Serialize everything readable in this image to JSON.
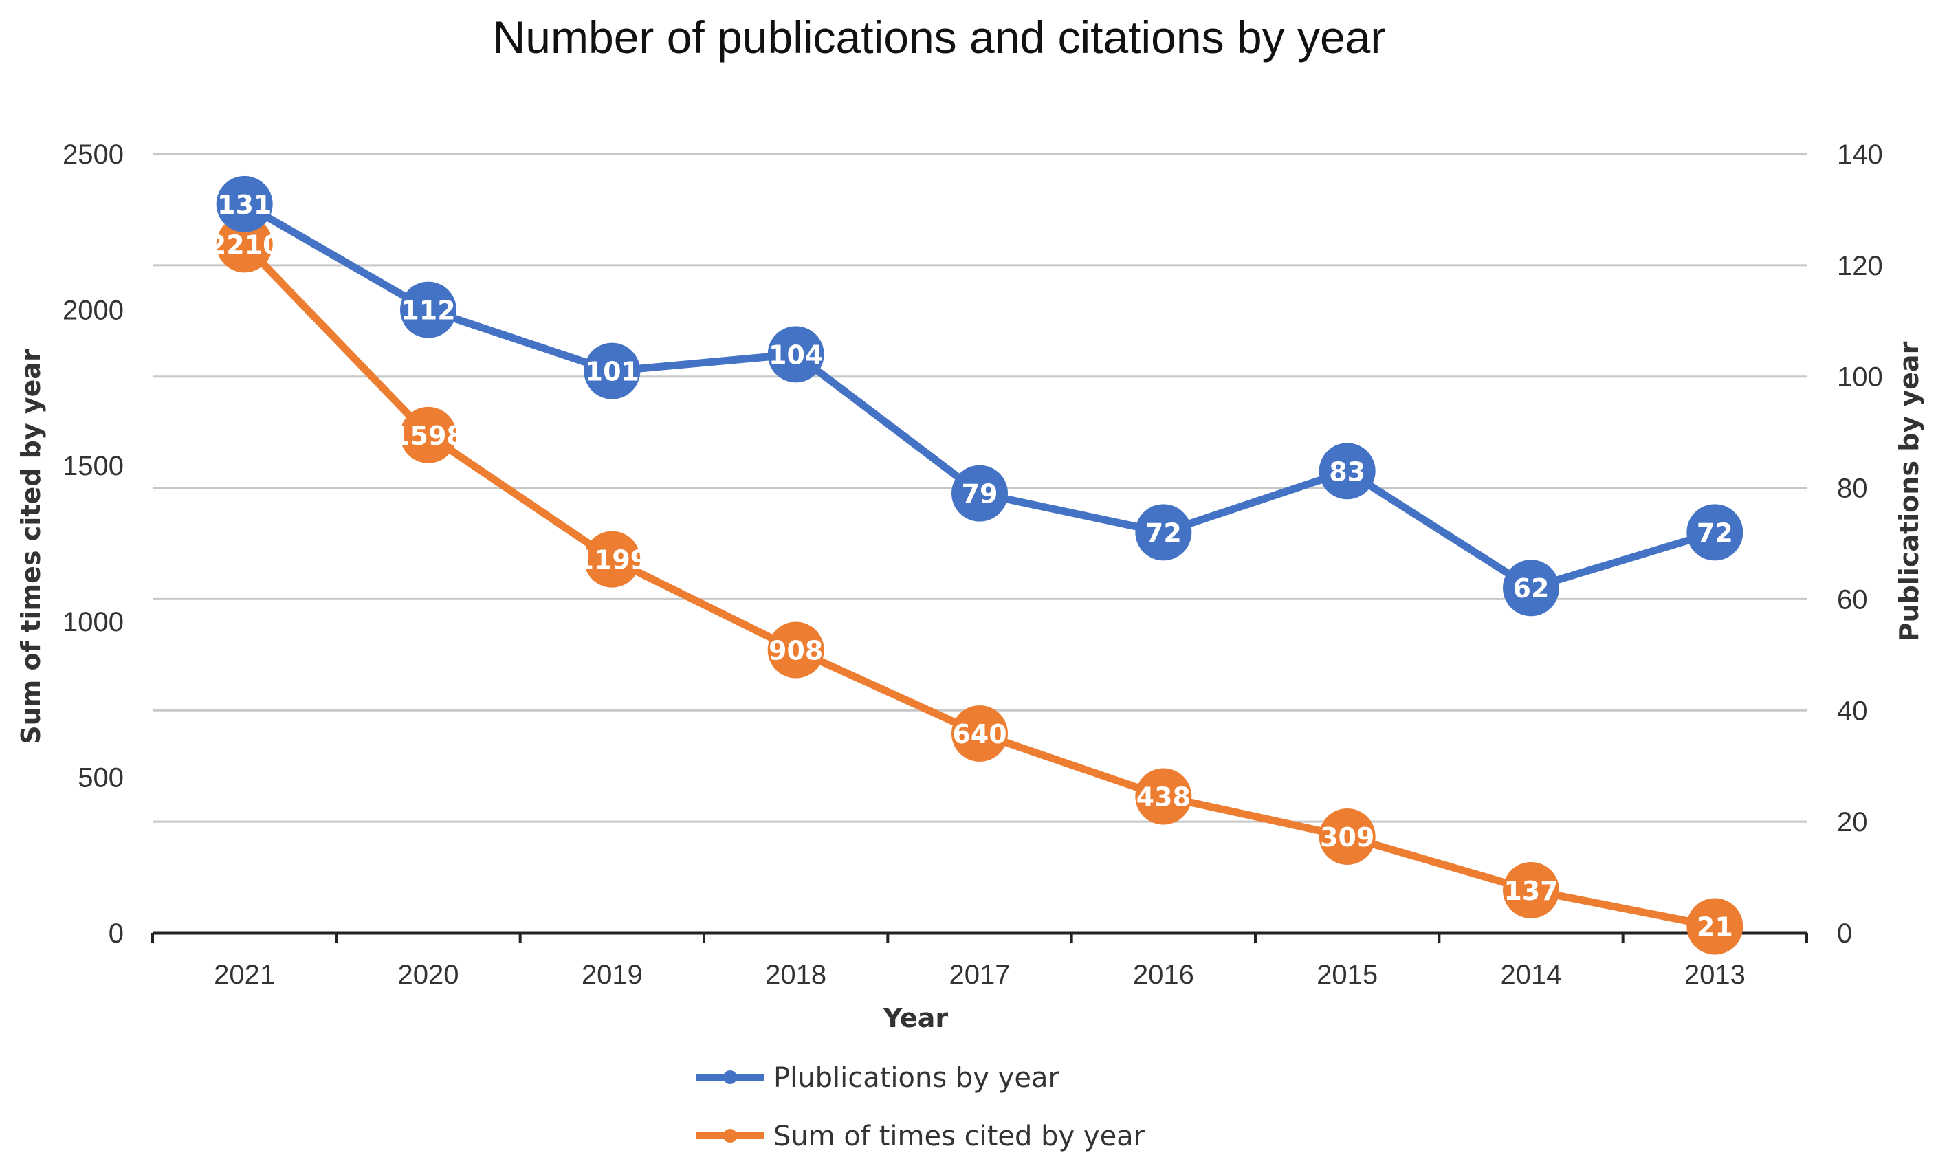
{
  "chart_data": {
    "type": "line",
    "title": "Number of publications and citations by year",
    "xlabel": "Year",
    "ylabel_left": "Sum of times cited by year",
    "ylabel_right": "Publications by year",
    "categories": [
      "2021",
      "2020",
      "2019",
      "2018",
      "2017",
      "2016",
      "2015",
      "2014",
      "2013"
    ],
    "y_left_range": [
      0,
      2500
    ],
    "y_left_ticks": [
      "0",
      "500",
      "1000",
      "1500",
      "2000",
      "2500"
    ],
    "y_right_range": [
      0,
      140
    ],
    "y_right_ticks": [
      "0",
      "20",
      "40",
      "60",
      "80",
      "100",
      "120",
      "140"
    ],
    "grid": true,
    "legend_position": "bottom",
    "series": [
      {
        "name": "Plublications by year",
        "axis": "right",
        "color": "#4472C4",
        "values": [
          131,
          112,
          101,
          104,
          79,
          72,
          83,
          62,
          72
        ],
        "labels": [
          "131",
          "112",
          "101",
          "104",
          "79",
          "72",
          "83",
          "62",
          "72"
        ]
      },
      {
        "name": "Sum of times cited by year",
        "axis": "left",
        "color": "#ED7D31",
        "values": [
          2210,
          1598,
          1199,
          908,
          640,
          438,
          309,
          137,
          21
        ],
        "labels": [
          "2210",
          "1598",
          "1199",
          "908",
          "640",
          "438",
          "309",
          "137",
          "21"
        ]
      }
    ]
  }
}
